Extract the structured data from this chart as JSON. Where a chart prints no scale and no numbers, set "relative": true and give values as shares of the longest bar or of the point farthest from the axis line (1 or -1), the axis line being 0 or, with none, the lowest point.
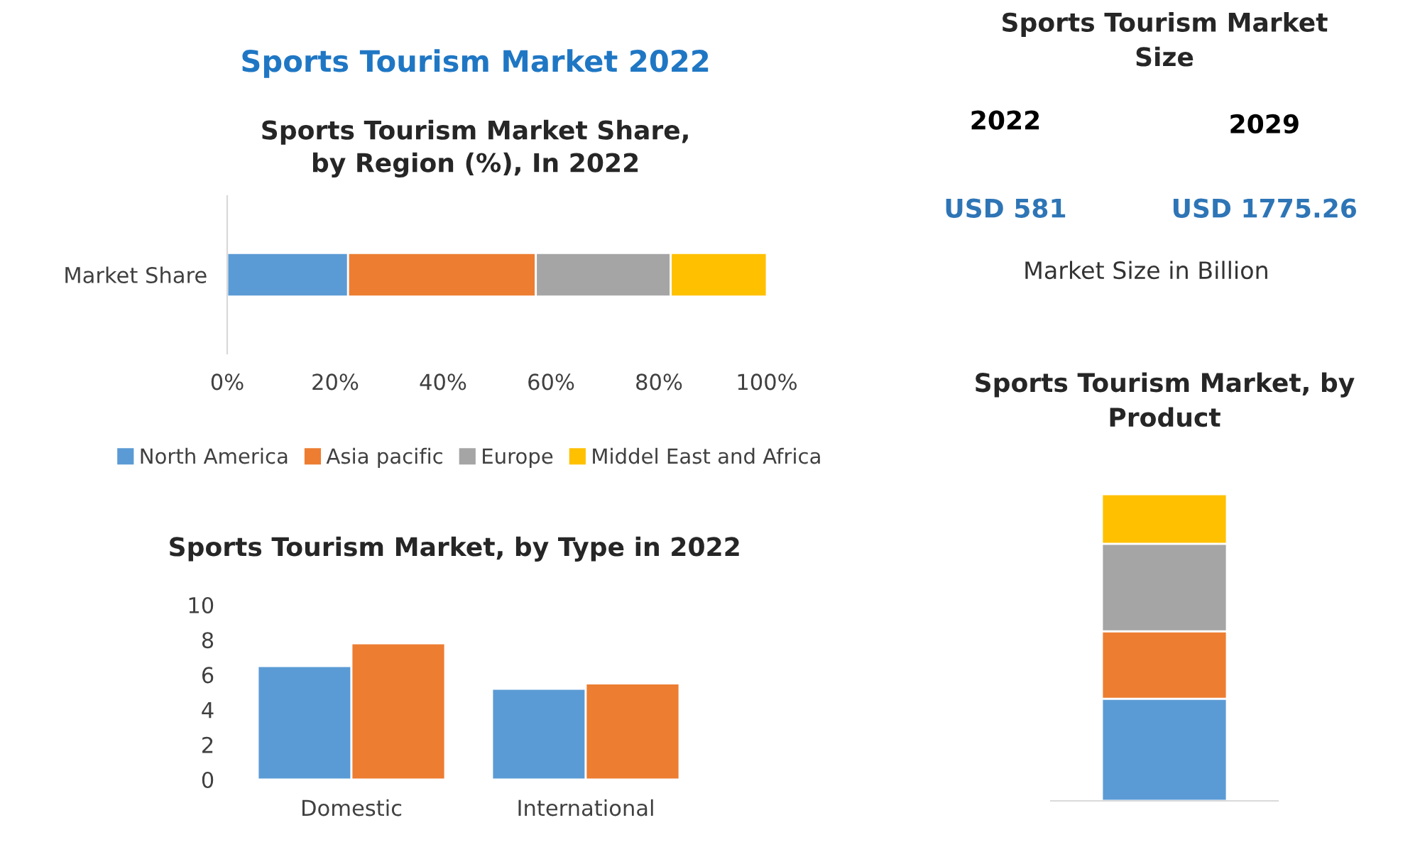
{
  "chart_data": [
    {
      "type": "bar",
      "title": "Sports Tourism Market 2022",
      "subtitle": "Sports Tourism Market Share,\nby Region (%), In 2022",
      "orientation": "horizontal",
      "stacked": true,
      "categories": [
        "Market Share"
      ],
      "series": [
        {
          "name": "North America",
          "color": "#5b9bd5",
          "values": [
            22.4
          ]
        },
        {
          "name": "Asia pacific",
          "color": "#ed7d31",
          "values": [
            34.8
          ]
        },
        {
          "name": "Europe",
          "color": "#a5a5a5",
          "values": [
            25.0
          ]
        },
        {
          "name": "Middel East and Africa",
          "color": "#ffc000",
          "values": [
            17.8
          ]
        }
      ],
      "xlim": [
        0,
        100
      ],
      "xticks": [
        {
          "value": 0,
          "label": "0%"
        },
        {
          "value": 20,
          "label": "20%"
        },
        {
          "value": 40,
          "label": "40%"
        },
        {
          "value": 60,
          "label": "60%"
        },
        {
          "value": 80,
          "label": "80%"
        },
        {
          "value": 100,
          "label": "100%"
        }
      ],
      "grid": false,
      "legend": "bottom"
    },
    {
      "type": "bar",
      "title": "Sports Tourism Market, by Type in 2022",
      "categories": [
        "Domestic",
        "International"
      ],
      "series": [
        {
          "color": "#5b9bd5",
          "values": [
            6.5,
            5.2
          ]
        },
        {
          "color": "#ed7d31",
          "values": [
            7.8,
            5.5
          ]
        }
      ],
      "ylim": [
        0,
        10
      ],
      "yticks": [
        0,
        2,
        4,
        6,
        8,
        10
      ],
      "grid": false
    },
    {
      "type": "bar",
      "title": "Sports Tourism Market, by\nProduct",
      "stacked": true,
      "relative": true,
      "categories": [
        null
      ],
      "series": [
        {
          "color": "#5b9bd5",
          "values": [
            0.333
          ]
        },
        {
          "color": "#ed7d31",
          "values": [
            0.22
          ]
        },
        {
          "color": "#a5a5a5",
          "values": [
            0.285
          ]
        },
        {
          "color": "#ffc000",
          "values": [
            0.162
          ]
        }
      ]
    },
    {
      "type": "other",
      "title": "Sports Tourism Market\nSize",
      "annotations": [
        "2022",
        "2029",
        "USD 581",
        "USD 1775.26",
        "Market Size in Billion"
      ]
    }
  ]
}
